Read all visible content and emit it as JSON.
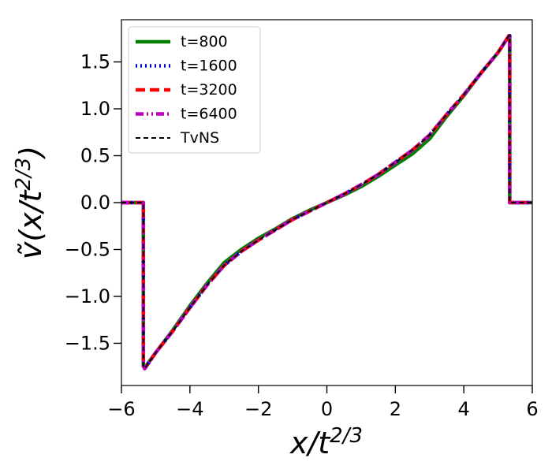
{
  "chart_data": {
    "type": "line",
    "title": "",
    "xlabel": "x/t^{2/3}",
    "ylabel": "ṽ(x/t^{2/3})",
    "xlim": [
      -6,
      6
    ],
    "ylim": [
      -1.95,
      1.95
    ],
    "xticks": [
      -6,
      -4,
      -2,
      0,
      2,
      4,
      6
    ],
    "yticks": [
      -1.5,
      -1.0,
      -0.5,
      0.0,
      0.5,
      1.0,
      1.5
    ],
    "xtick_labels": [
      "−6",
      "−4",
      "−2",
      "0",
      "2",
      "4",
      "6"
    ],
    "ytick_labels": [
      "−1.5",
      "−1.0",
      "−0.5",
      "0.0",
      "0.5",
      "1.0",
      "1.5"
    ],
    "grid": false,
    "legend_position": "top-left",
    "series": [
      {
        "name": "t=800",
        "color": "#008000",
        "style": "solid",
        "x": [
          -6.0,
          -5.36,
          -5.36,
          -5.32,
          -5.0,
          -4.5,
          -4.0,
          -3.5,
          -3.0,
          -2.5,
          -2.0,
          -1.5,
          -1.0,
          -0.5,
          0.0,
          0.5,
          1.0,
          1.5,
          2.0,
          2.5,
          3.0,
          3.5,
          4.0,
          4.5,
          5.0,
          5.32,
          5.34,
          5.34,
          6.0
        ],
        "y": [
          0.0,
          0.0,
          -1.73,
          -1.76,
          -1.6,
          -1.36,
          -1.1,
          -0.86,
          -0.64,
          -0.5,
          -0.38,
          -0.28,
          -0.17,
          -0.08,
          0.0,
          0.08,
          0.17,
          0.28,
          0.4,
          0.52,
          0.68,
          0.92,
          1.14,
          1.38,
          1.6,
          1.78,
          1.78,
          0.0,
          0.0
        ]
      },
      {
        "name": "t=1600",
        "color": "#0000dd",
        "style": "dotted",
        "x": [
          -6.0,
          -5.36,
          -5.36,
          -5.32,
          -5.0,
          -4.5,
          -4.0,
          -3.5,
          -3.0,
          -2.5,
          -2.0,
          -1.5,
          -1.0,
          -0.5,
          0.0,
          0.5,
          1.0,
          1.5,
          2.0,
          2.5,
          3.0,
          3.5,
          4.0,
          4.5,
          5.0,
          5.32,
          5.34,
          5.34,
          6.0
        ],
        "y": [
          0.0,
          0.0,
          -1.74,
          -1.77,
          -1.6,
          -1.37,
          -1.12,
          -0.88,
          -0.67,
          -0.52,
          -0.4,
          -0.29,
          -0.18,
          -0.09,
          0.0,
          0.09,
          0.19,
          0.3,
          0.43,
          0.56,
          0.72,
          0.94,
          1.15,
          1.38,
          1.6,
          1.78,
          1.78,
          0.0,
          0.0
        ]
      },
      {
        "name": "t=3200",
        "color": "#ff0000",
        "style": "dashed",
        "x": [
          -6.0,
          -5.36,
          -5.36,
          -5.32,
          -5.0,
          -4.5,
          -4.0,
          -3.5,
          -3.0,
          -2.5,
          -2.0,
          -1.5,
          -1.0,
          -0.5,
          0.0,
          0.5,
          1.0,
          1.5,
          2.0,
          2.5,
          3.0,
          3.5,
          4.0,
          4.5,
          5.0,
          5.32,
          5.34,
          5.34,
          6.0
        ],
        "y": [
          0.0,
          0.0,
          -1.74,
          -1.77,
          -1.6,
          -1.37,
          -1.12,
          -0.88,
          -0.67,
          -0.52,
          -0.4,
          -0.29,
          -0.18,
          -0.09,
          0.0,
          0.09,
          0.19,
          0.3,
          0.43,
          0.56,
          0.72,
          0.94,
          1.15,
          1.38,
          1.6,
          1.78,
          1.78,
          0.0,
          0.0
        ]
      },
      {
        "name": "t=6400",
        "color": "#bf00bf",
        "style": "dashdot",
        "x": [
          -6.0,
          -5.36,
          -5.36,
          -5.32,
          -5.0,
          -4.5,
          -4.0,
          -3.5,
          -3.0,
          -2.5,
          -2.0,
          -1.5,
          -1.0,
          -0.5,
          0.0,
          0.5,
          1.0,
          1.5,
          2.0,
          2.5,
          3.0,
          3.5,
          4.0,
          4.5,
          5.0,
          5.32,
          5.34,
          5.34,
          6.0
        ],
        "y": [
          0.0,
          0.0,
          -1.74,
          -1.77,
          -1.6,
          -1.37,
          -1.12,
          -0.88,
          -0.67,
          -0.52,
          -0.4,
          -0.29,
          -0.18,
          -0.09,
          0.0,
          0.09,
          0.19,
          0.3,
          0.43,
          0.56,
          0.72,
          0.94,
          1.15,
          1.38,
          1.6,
          1.78,
          1.78,
          0.0,
          0.0
        ]
      },
      {
        "name": "TvNS",
        "color": "#000000",
        "style": "thin-dashed",
        "x": [
          -6.0,
          -5.36,
          -5.36,
          -5.32,
          -5.0,
          -4.5,
          -4.0,
          -3.5,
          -3.0,
          -2.5,
          -2.0,
          -1.5,
          -1.0,
          -0.5,
          0.0,
          0.5,
          1.0,
          1.5,
          2.0,
          2.5,
          3.0,
          3.5,
          4.0,
          4.5,
          5.0,
          5.32,
          5.34,
          5.34,
          6.0
        ],
        "y": [
          0.0,
          0.0,
          -1.74,
          -1.77,
          -1.6,
          -1.37,
          -1.12,
          -0.88,
          -0.67,
          -0.52,
          -0.4,
          -0.29,
          -0.18,
          -0.09,
          0.0,
          0.09,
          0.19,
          0.3,
          0.43,
          0.56,
          0.72,
          0.94,
          1.15,
          1.38,
          1.6,
          1.78,
          1.78,
          0.0,
          0.0
        ]
      }
    ]
  }
}
